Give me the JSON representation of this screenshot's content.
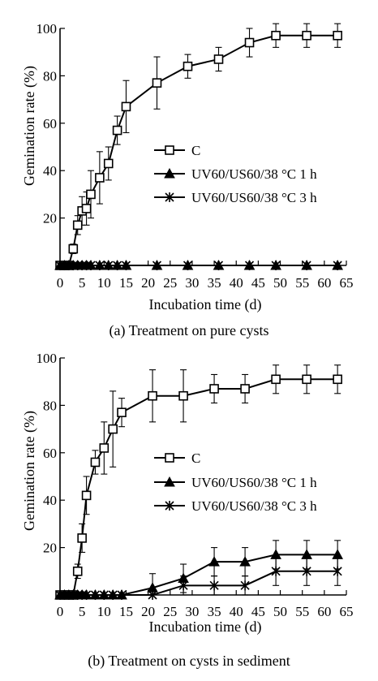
{
  "chart_data": [
    {
      "type": "line",
      "caption": "(a) Treatment on pure cysts",
      "xlabel": "Incubation time (d)",
      "ylabel": "Gemination rate (%)",
      "xlim": [
        0,
        65
      ],
      "ylim": [
        0,
        100
      ],
      "xticks": [
        0,
        5,
        10,
        15,
        20,
        25,
        30,
        35,
        40,
        45,
        50,
        55,
        60,
        65
      ],
      "yticks": [
        20,
        40,
        60,
        80,
        100
      ],
      "legend_position": "middle-right",
      "series": [
        {
          "name": "C",
          "marker": "open-square",
          "x": [
            0,
            1,
            2,
            3,
            4,
            5,
            6,
            7,
            9,
            11,
            13,
            15,
            22,
            29,
            36,
            43,
            49,
            56,
            63
          ],
          "y": [
            0,
            0,
            0,
            7,
            17,
            23,
            24,
            30,
            37,
            43,
            57,
            67,
            77,
            84,
            87,
            94,
            97,
            97,
            97
          ],
          "err": [
            0,
            0,
            0,
            2,
            4,
            6,
            7,
            10,
            11,
            7,
            6,
            11,
            11,
            5,
            5,
            6,
            5,
            5,
            5
          ]
        },
        {
          "name": "UV60/US60/38 °C 1 h",
          "marker": "filled-triangle",
          "x": [
            0,
            1,
            2,
            3,
            4,
            5,
            6,
            7,
            9,
            11,
            13,
            15,
            22,
            29,
            36,
            43,
            49,
            56,
            63
          ],
          "y": [
            0,
            0,
            0,
            0,
            0,
            0,
            0,
            0,
            0,
            0,
            0,
            0,
            0,
            0,
            0,
            0,
            0,
            0,
            0
          ]
        },
        {
          "name": "UV60/US60/38 °C 3 h",
          "marker": "star",
          "x": [
            0,
            1,
            2,
            3,
            4,
            5,
            6,
            7,
            9,
            11,
            13,
            15,
            22,
            29,
            36,
            43,
            49,
            56,
            63
          ],
          "y": [
            0,
            0,
            0,
            0,
            0,
            0,
            0,
            0,
            0,
            0,
            0,
            0,
            0,
            0,
            0,
            0,
            0,
            0,
            0
          ]
        }
      ]
    },
    {
      "type": "line",
      "caption": "(b) Treatment on cysts in sediment",
      "xlabel": "Incubation time (d)",
      "ylabel": "Gemination rate (%)",
      "xlim": [
        0,
        65
      ],
      "ylim": [
        0,
        100
      ],
      "xticks": [
        0,
        5,
        10,
        15,
        20,
        25,
        30,
        35,
        40,
        45,
        50,
        55,
        60,
        65
      ],
      "yticks": [
        20,
        40,
        60,
        80,
        100
      ],
      "legend_position": "middle-right",
      "series": [
        {
          "name": "C",
          "marker": "open-square",
          "x": [
            0,
            1,
            2,
            3,
            4,
            5,
            6,
            8,
            10,
            12,
            14,
            21,
            28,
            35,
            42,
            49,
            56,
            63
          ],
          "y": [
            0,
            0,
            0,
            0,
            10,
            24,
            42,
            56,
            62,
            70,
            77,
            84,
            84,
            87,
            87,
            91,
            91,
            91
          ],
          "err": [
            0,
            0,
            0,
            0,
            3,
            6,
            8,
            5,
            11,
            16,
            6,
            11,
            11,
            6,
            6,
            6,
            6,
            6
          ]
        },
        {
          "name": "UV60/US60/38 °C 1 h",
          "marker": "filled-triangle",
          "x": [
            0,
            1,
            2,
            3,
            4,
            5,
            6,
            8,
            10,
            12,
            14,
            21,
            28,
            35,
            42,
            49,
            56,
            63
          ],
          "y": [
            0,
            0,
            0,
            0,
            0,
            0,
            0,
            0,
            0,
            0,
            0,
            3,
            7,
            14,
            14,
            17,
            17,
            17
          ],
          "err": [
            0,
            0,
            0,
            0,
            0,
            0,
            0,
            0,
            0,
            0,
            0,
            6,
            6,
            6,
            6,
            6,
            6,
            6
          ]
        },
        {
          "name": "UV60/US60/38 °C 3 h",
          "marker": "star",
          "x": [
            0,
            1,
            2,
            3,
            4,
            5,
            6,
            8,
            10,
            12,
            14,
            21,
            28,
            35,
            42,
            49,
            56,
            63
          ],
          "y": [
            0,
            0,
            0,
            0,
            0,
            0,
            0,
            0,
            0,
            0,
            0,
            0,
            4,
            4,
            4,
            10,
            10,
            10
          ],
          "err": [
            0,
            0,
            0,
            0,
            0,
            0,
            0,
            0,
            0,
            0,
            0,
            0,
            4,
            4,
            4,
            6,
            6,
            6
          ]
        }
      ]
    }
  ]
}
